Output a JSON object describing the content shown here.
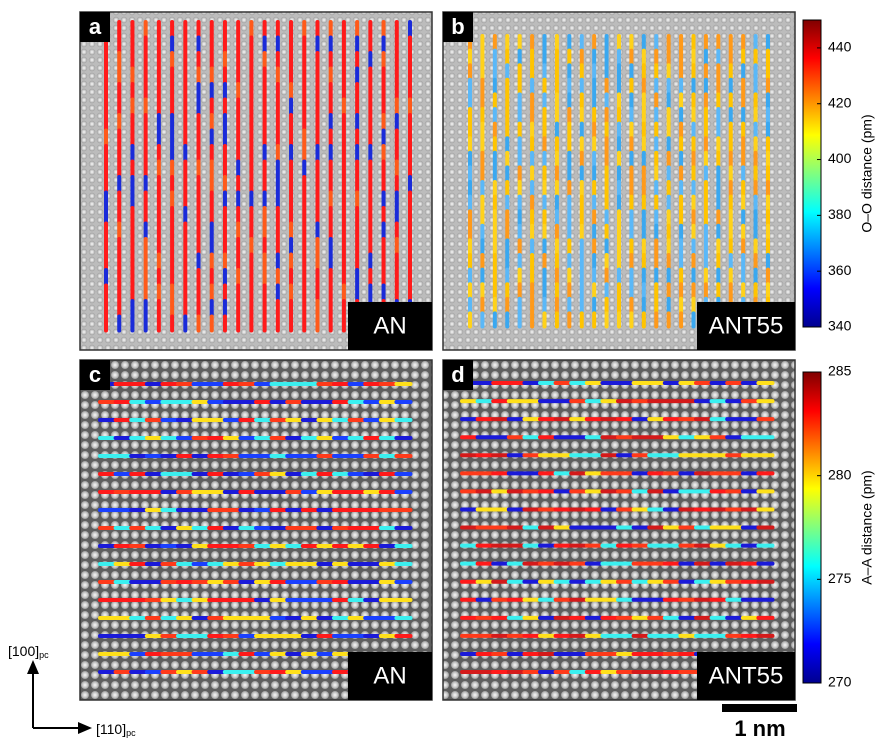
{
  "panels": [
    {
      "letter": "a",
      "label": "AN"
    },
    {
      "letter": "b",
      "label": "ANT55"
    },
    {
      "letter": "c",
      "label": "AN"
    },
    {
      "letter": "d",
      "label": "ANT55"
    }
  ],
  "colorbars": [
    {
      "label": "O–O distance (pm)",
      "lim": [
        340,
        450
      ],
      "ticks": [
        340,
        360,
        380,
        400,
        420,
        440
      ]
    },
    {
      "label": "A–A distance (pm)",
      "lim": [
        270,
        285
      ],
      "ticks": [
        270,
        275,
        280,
        285
      ]
    }
  ],
  "axes": {
    "vertical": {
      "text": "[100]",
      "subscript": "pc"
    },
    "horizontal": {
      "text": "[110]",
      "subscript": "pc"
    }
  },
  "scale_bar": "1 nm"
}
